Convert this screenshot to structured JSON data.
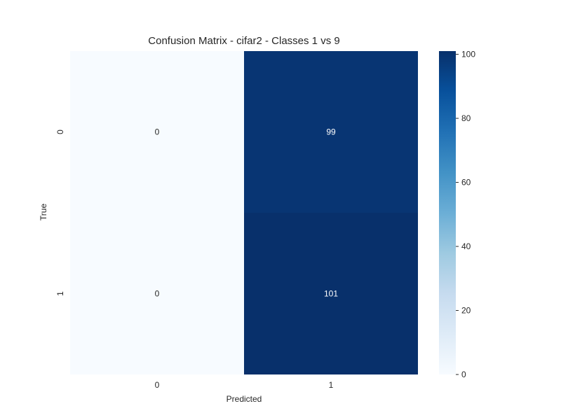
{
  "chart_data": {
    "type": "heatmap",
    "title": "Confusion Matrix - cifar2 - Classes 1 vs 9",
    "xlabel": "Predicted",
    "ylabel": "True",
    "x_categories": [
      "0",
      "1"
    ],
    "y_categories": [
      "0",
      "1"
    ],
    "values": [
      [
        0,
        99
      ],
      [
        0,
        101
      ]
    ],
    "colorbar": {
      "range": [
        0,
        101
      ],
      "ticks": [
        0,
        20,
        40,
        60,
        80,
        100
      ]
    },
    "colormap": "Blues",
    "grid": false
  }
}
